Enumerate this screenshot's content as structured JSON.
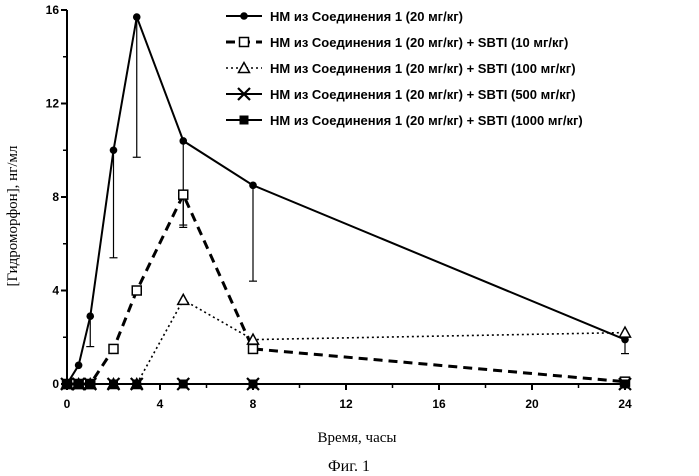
{
  "chart_data": {
    "type": "line",
    "xlabel": "Время, часы",
    "ylabel": "[Гидроморфон], нг/мл",
    "caption": "Фиг. 1",
    "xlim": [
      0,
      24
    ],
    "ylim": [
      0,
      16
    ],
    "xticks": [
      0,
      4,
      8,
      12,
      16,
      20,
      24
    ],
    "yticks": [
      0,
      4,
      8,
      12,
      16
    ],
    "grid": false,
    "legend_position": "top-right",
    "series": [
      {
        "name": "HM из Соединения 1 (20 мг/кг)",
        "marker": "filled-circle",
        "line": "solid",
        "x": [
          0,
          0.5,
          1,
          2,
          3,
          5,
          8,
          24
        ],
        "y": [
          0,
          0.8,
          2.9,
          10.0,
          15.7,
          10.4,
          8.5,
          1.9
        ],
        "error_down": [
          0,
          0,
          1.3,
          4.6,
          6.0,
          3.6,
          4.1,
          0.6
        ]
      },
      {
        "name": "HM из Соединения 1 (20 мг/кг) + SBTI (10 мг/кг)",
        "marker": "open-square",
        "line": "heavy-dash",
        "x": [
          0,
          0.5,
          1,
          2,
          3,
          5,
          8,
          24
        ],
        "y": [
          0,
          0,
          0,
          1.5,
          4.0,
          8.1,
          1.5,
          0.1
        ],
        "error_down": [
          0,
          0,
          0,
          0,
          0,
          1.4,
          0,
          0
        ]
      },
      {
        "name": "HM из Соединения 1 (20 мг/кг) + SBTI (100 мг/кг)",
        "marker": "open-triangle",
        "line": "dotted",
        "x": [
          0,
          0.5,
          1,
          2,
          3,
          5,
          8,
          24
        ],
        "y": [
          0,
          0,
          0,
          0,
          0,
          3.6,
          1.9,
          2.2
        ],
        "error_down": [
          0,
          0,
          0,
          0,
          0,
          0,
          0,
          0
        ]
      },
      {
        "name": "HM из Соединения 1 (20 мг/кг) + SBTI (500 мг/кг)",
        "marker": "cross",
        "line": "solid",
        "x": [
          0,
          0.5,
          1,
          2,
          3,
          5,
          8,
          24
        ],
        "y": [
          0,
          0,
          0,
          0,
          0,
          0,
          0,
          0
        ],
        "error_down": [
          0,
          0,
          0,
          0,
          0,
          0,
          0,
          0
        ]
      },
      {
        "name": "HM из Соединения 1 (20 мг/кг) + SBTI (1000 мг/кг)",
        "marker": "filled-square",
        "line": "solid",
        "x": [
          0,
          0.5,
          1,
          2,
          3,
          5,
          8,
          24
        ],
        "y": [
          0,
          0,
          0,
          0,
          0,
          0,
          0,
          0
        ],
        "error_down": [
          0,
          0,
          0,
          0,
          0,
          0,
          0,
          0
        ]
      }
    ]
  }
}
